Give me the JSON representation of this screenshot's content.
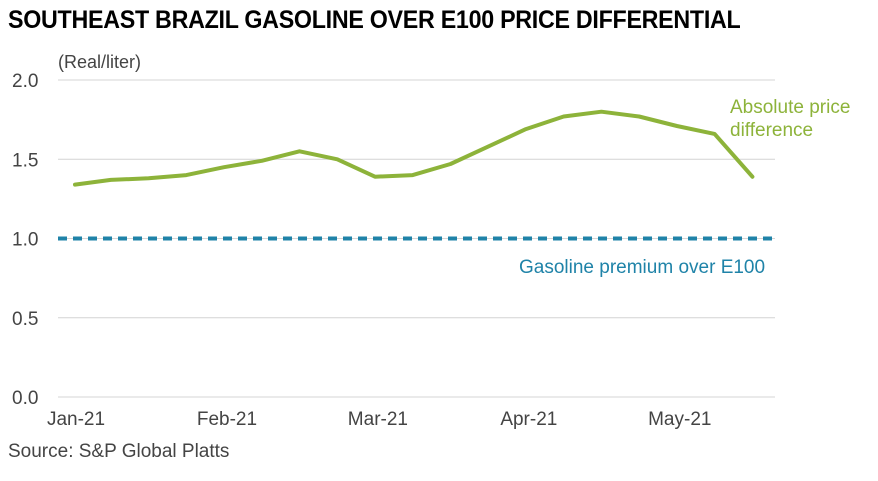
{
  "chart_data": {
    "type": "line",
    "title": "SOUTHEAST BRAZIL GASOLINE OVER E100 PRICE DIFFERENTIAL",
    "ylabel": "(Real/liter)",
    "xlabel": "",
    "ylim": [
      0,
      2.0
    ],
    "yticks": [
      {
        "value": 0.0,
        "label": "0.0"
      },
      {
        "value": 0.5,
        "label": "0.5"
      },
      {
        "value": 1.0,
        "label": "1.0"
      },
      {
        "value": 1.5,
        "label": "1.5"
      },
      {
        "value": 2.0,
        "label": "2.0"
      }
    ],
    "xlim": [
      0,
      19
    ],
    "xticks": [
      {
        "x": 0,
        "label": "Jan-21"
      },
      {
        "x": 4,
        "label": "Feb-21"
      },
      {
        "x": 8,
        "label": "Mar-21"
      },
      {
        "x": 12,
        "label": "Apr-21"
      },
      {
        "x": 16,
        "label": "May-21"
      }
    ],
    "grid": true,
    "series": [
      {
        "name": "Absolute price difference",
        "label_lines": [
          "Absolute price",
          "difference"
        ],
        "color": "#8db33a",
        "style": "solid",
        "x": [
          0.45,
          1.4,
          2.4,
          3.4,
          4.4,
          5.4,
          6.4,
          7.4,
          8.4,
          9.4,
          10.4,
          11.4,
          12.4,
          13.4,
          14.4,
          15.4,
          16.4,
          17.4,
          18.4
        ],
        "values": [
          1.34,
          1.37,
          1.38,
          1.4,
          1.45,
          1.49,
          1.55,
          1.5,
          1.39,
          1.4,
          1.47,
          1.58,
          1.69,
          1.77,
          1.8,
          1.77,
          1.71,
          1.66,
          1.39
        ]
      },
      {
        "name": "Gasoline premium over E100",
        "color": "#1f83a8",
        "style": "dashed",
        "x": [
          0,
          19
        ],
        "values": [
          1.0,
          1.0
        ]
      }
    ]
  },
  "source": "Source: S&P Global Platts"
}
